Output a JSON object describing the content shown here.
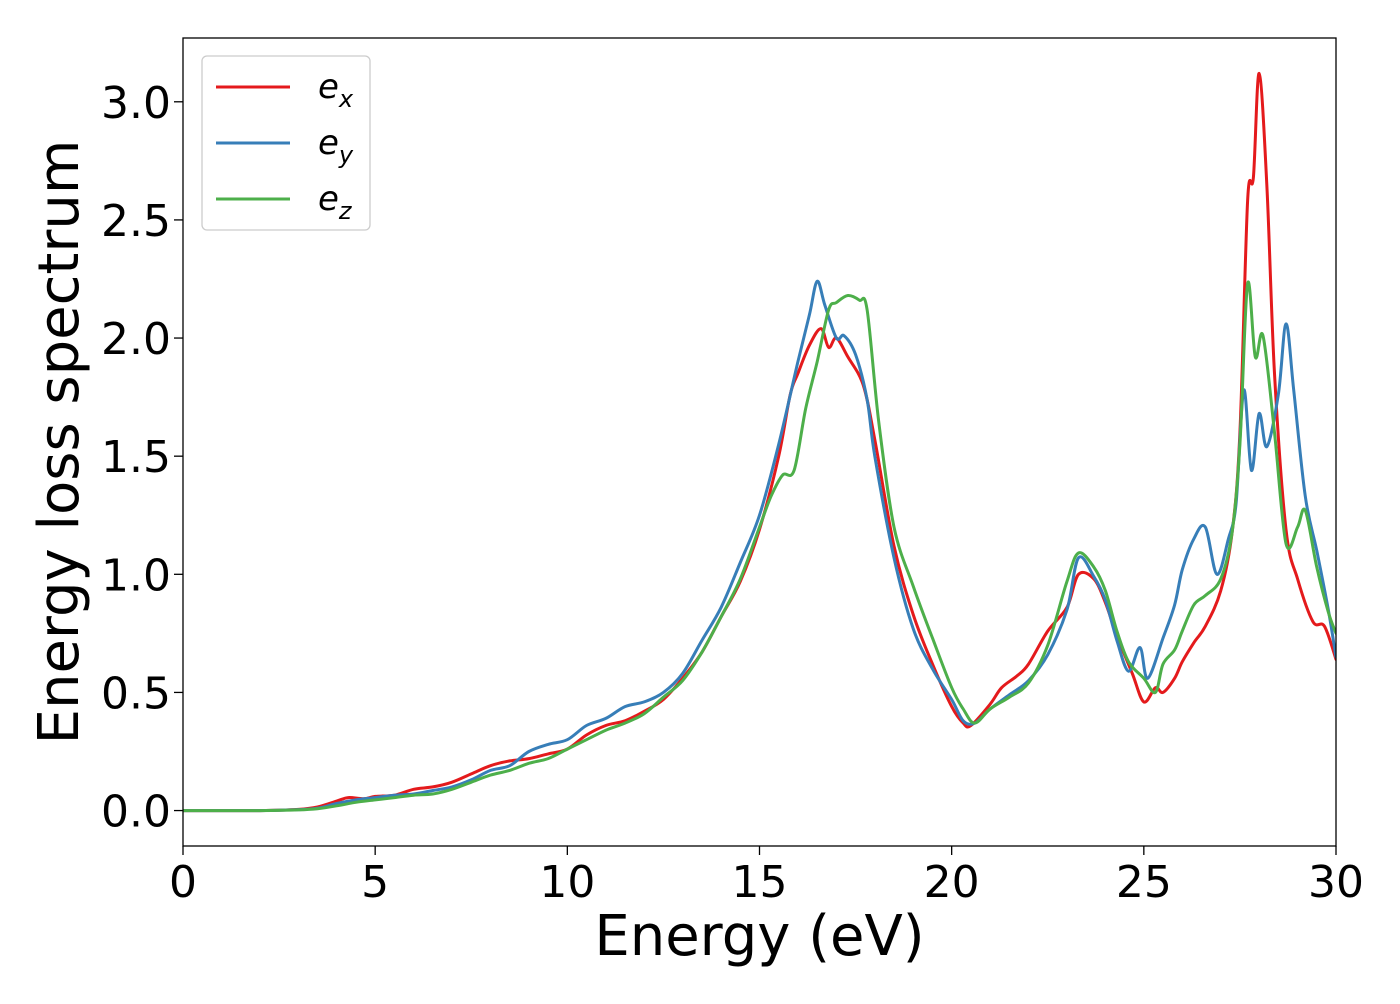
{
  "chart_data": {
    "type": "line",
    "title": "",
    "xlabel": "Energy (eV)",
    "ylabel": "Energy loss spectrum",
    "xlim": [
      0,
      30
    ],
    "ylim": [
      -0.15,
      3.27
    ],
    "xticks": [
      0,
      5,
      10,
      15,
      20,
      25,
      30
    ],
    "yticks": [
      0.0,
      0.5,
      1.0,
      1.5,
      2.0,
      2.5,
      3.0
    ],
    "xtick_labels": [
      "0",
      "5",
      "10",
      "15",
      "20",
      "25",
      "30"
    ],
    "ytick_labels": [
      "0.0",
      "0.5",
      "1.0",
      "1.5",
      "2.0",
      "2.5",
      "3.0"
    ],
    "grid": false,
    "legend_position": "top-left",
    "series": [
      {
        "name": "e_x",
        "legend_base": "e",
        "legend_sub": "x",
        "color": "#e41a1c",
        "points": [
          [
            0,
            0
          ],
          [
            2,
            0.0
          ],
          [
            3,
            0.005
          ],
          [
            3.5,
            0.015
          ],
          [
            4,
            0.04
          ],
          [
            4.3,
            0.055
          ],
          [
            4.7,
            0.05
          ],
          [
            5,
            0.06
          ],
          [
            5.5,
            0.065
          ],
          [
            6,
            0.09
          ],
          [
            6.5,
            0.1
          ],
          [
            7,
            0.12
          ],
          [
            7.5,
            0.155
          ],
          [
            8,
            0.19
          ],
          [
            8.5,
            0.21
          ],
          [
            9,
            0.22
          ],
          [
            9.5,
            0.24
          ],
          [
            10,
            0.26
          ],
          [
            10.5,
            0.32
          ],
          [
            11,
            0.36
          ],
          [
            11.5,
            0.38
          ],
          [
            12,
            0.42
          ],
          [
            12.5,
            0.47
          ],
          [
            13,
            0.56
          ],
          [
            13.5,
            0.67
          ],
          [
            14,
            0.82
          ],
          [
            14.5,
            0.97
          ],
          [
            15,
            1.19
          ],
          [
            15.5,
            1.5
          ],
          [
            15.8,
            1.76
          ],
          [
            16,
            1.85
          ],
          [
            16.3,
            1.97
          ],
          [
            16.6,
            2.04
          ],
          [
            16.8,
            1.96
          ],
          [
            17,
            2.0
          ],
          [
            17.3,
            1.92
          ],
          [
            17.7,
            1.8
          ],
          [
            18,
            1.57
          ],
          [
            18.5,
            1.12
          ],
          [
            19,
            0.83
          ],
          [
            19.5,
            0.62
          ],
          [
            20,
            0.44
          ],
          [
            20.3,
            0.37
          ],
          [
            20.5,
            0.36
          ],
          [
            21,
            0.45
          ],
          [
            21.3,
            0.52
          ],
          [
            21.7,
            0.57
          ],
          [
            22,
            0.62
          ],
          [
            22.5,
            0.76
          ],
          [
            23,
            0.86
          ],
          [
            23.3,
            1.0
          ],
          [
            23.7,
            0.98
          ],
          [
            24,
            0.88
          ],
          [
            24.3,
            0.74
          ],
          [
            24.7,
            0.58
          ],
          [
            25,
            0.46
          ],
          [
            25.3,
            0.52
          ],
          [
            25.5,
            0.5
          ],
          [
            25.8,
            0.56
          ],
          [
            26,
            0.63
          ],
          [
            26.3,
            0.71
          ],
          [
            26.6,
            0.78
          ],
          [
            27,
            0.93
          ],
          [
            27.3,
            1.18
          ],
          [
            27.5,
            1.6
          ],
          [
            27.7,
            2.58
          ],
          [
            27.85,
            2.68
          ],
          [
            28,
            3.12
          ],
          [
            28.2,
            2.65
          ],
          [
            28.4,
            1.85
          ],
          [
            28.7,
            1.19
          ],
          [
            29,
            0.98
          ],
          [
            29.4,
            0.8
          ],
          [
            29.7,
            0.78
          ],
          [
            30,
            0.64
          ]
        ]
      },
      {
        "name": "e_y",
        "legend_base": "e",
        "legend_sub": "y",
        "color": "#377eb8",
        "points": [
          [
            0,
            0
          ],
          [
            2,
            0.0
          ],
          [
            3,
            0.004
          ],
          [
            3.5,
            0.01
          ],
          [
            4,
            0.03
          ],
          [
            4.5,
            0.045
          ],
          [
            5,
            0.055
          ],
          [
            5.5,
            0.065
          ],
          [
            6,
            0.07
          ],
          [
            6.5,
            0.085
          ],
          [
            7,
            0.1
          ],
          [
            7.5,
            0.13
          ],
          [
            8,
            0.17
          ],
          [
            8.5,
            0.19
          ],
          [
            9,
            0.25
          ],
          [
            9.5,
            0.28
          ],
          [
            10,
            0.3
          ],
          [
            10.5,
            0.36
          ],
          [
            11,
            0.39
          ],
          [
            11.5,
            0.44
          ],
          [
            12,
            0.46
          ],
          [
            12.5,
            0.5
          ],
          [
            13,
            0.58
          ],
          [
            13.5,
            0.72
          ],
          [
            14,
            0.86
          ],
          [
            14.5,
            1.05
          ],
          [
            15,
            1.25
          ],
          [
            15.5,
            1.55
          ],
          [
            16,
            1.9
          ],
          [
            16.3,
            2.1
          ],
          [
            16.5,
            2.24
          ],
          [
            16.7,
            2.14
          ],
          [
            17,
            2.0
          ],
          [
            17.2,
            2.01
          ],
          [
            17.5,
            1.93
          ],
          [
            17.8,
            1.74
          ],
          [
            18,
            1.5
          ],
          [
            18.5,
            1.07
          ],
          [
            19,
            0.77
          ],
          [
            19.5,
            0.6
          ],
          [
            20,
            0.47
          ],
          [
            20.3,
            0.38
          ],
          [
            20.6,
            0.37
          ],
          [
            21,
            0.43
          ],
          [
            21.5,
            0.49
          ],
          [
            22,
            0.55
          ],
          [
            22.5,
            0.66
          ],
          [
            23,
            0.85
          ],
          [
            23.3,
            1.07
          ],
          [
            23.7,
            0.99
          ],
          [
            24,
            0.89
          ],
          [
            24.3,
            0.72
          ],
          [
            24.6,
            0.59
          ],
          [
            24.9,
            0.69
          ],
          [
            25.1,
            0.56
          ],
          [
            25.5,
            0.73
          ],
          [
            25.8,
            0.87
          ],
          [
            26,
            1.02
          ],
          [
            26.3,
            1.15
          ],
          [
            26.6,
            1.2
          ],
          [
            26.9,
            1.0
          ],
          [
            27.2,
            1.15
          ],
          [
            27.4,
            1.3
          ],
          [
            27.6,
            1.78
          ],
          [
            27.8,
            1.44
          ],
          [
            28,
            1.68
          ],
          [
            28.2,
            1.54
          ],
          [
            28.5,
            1.76
          ],
          [
            28.7,
            2.06
          ],
          [
            28.9,
            1.78
          ],
          [
            29.2,
            1.33
          ],
          [
            29.5,
            1.1
          ],
          [
            29.8,
            0.85
          ],
          [
            30,
            0.65
          ]
        ]
      },
      {
        "name": "e_z",
        "legend_base": "e",
        "legend_sub": "z",
        "color": "#4daf4a",
        "points": [
          [
            0,
            0
          ],
          [
            2,
            0.0
          ],
          [
            3,
            0.003
          ],
          [
            3.5,
            0.008
          ],
          [
            4,
            0.02
          ],
          [
            4.5,
            0.035
          ],
          [
            5,
            0.045
          ],
          [
            5.5,
            0.055
          ],
          [
            6,
            0.065
          ],
          [
            6.5,
            0.07
          ],
          [
            7,
            0.09
          ],
          [
            7.5,
            0.12
          ],
          [
            8,
            0.15
          ],
          [
            8.5,
            0.17
          ],
          [
            9,
            0.2
          ],
          [
            9.5,
            0.22
          ],
          [
            10,
            0.26
          ],
          [
            10.5,
            0.3
          ],
          [
            11,
            0.34
          ],
          [
            11.5,
            0.37
          ],
          [
            12,
            0.41
          ],
          [
            12.5,
            0.48
          ],
          [
            13,
            0.55
          ],
          [
            13.5,
            0.67
          ],
          [
            14,
            0.82
          ],
          [
            14.5,
            0.98
          ],
          [
            15,
            1.2
          ],
          [
            15.3,
            1.33
          ],
          [
            15.6,
            1.42
          ],
          [
            15.9,
            1.44
          ],
          [
            16.2,
            1.7
          ],
          [
            16.5,
            1.9
          ],
          [
            16.8,
            2.12
          ],
          [
            17,
            2.15
          ],
          [
            17.3,
            2.18
          ],
          [
            17.6,
            2.16
          ],
          [
            17.8,
            2.12
          ],
          [
            18.1,
            1.65
          ],
          [
            18.5,
            1.2
          ],
          [
            19,
            0.95
          ],
          [
            19.5,
            0.73
          ],
          [
            20,
            0.52
          ],
          [
            20.3,
            0.43
          ],
          [
            20.6,
            0.37
          ],
          [
            21,
            0.43
          ],
          [
            21.5,
            0.48
          ],
          [
            22,
            0.54
          ],
          [
            22.5,
            0.7
          ],
          [
            23,
            0.97
          ],
          [
            23.3,
            1.09
          ],
          [
            23.7,
            1.03
          ],
          [
            24,
            0.93
          ],
          [
            24.3,
            0.76
          ],
          [
            24.6,
            0.63
          ],
          [
            25,
            0.56
          ],
          [
            25.3,
            0.5
          ],
          [
            25.5,
            0.62
          ],
          [
            25.8,
            0.68
          ],
          [
            26,
            0.76
          ],
          [
            26.3,
            0.87
          ],
          [
            26.6,
            0.91
          ],
          [
            27,
            0.98
          ],
          [
            27.3,
            1.18
          ],
          [
            27.5,
            1.55
          ],
          [
            27.7,
            2.23
          ],
          [
            27.9,
            1.92
          ],
          [
            28.1,
            2.01
          ],
          [
            28.4,
            1.6
          ],
          [
            28.7,
            1.13
          ],
          [
            29,
            1.2
          ],
          [
            29.2,
            1.27
          ],
          [
            29.5,
            1.03
          ],
          [
            29.8,
            0.84
          ],
          [
            30,
            0.75
          ]
        ]
      }
    ]
  }
}
